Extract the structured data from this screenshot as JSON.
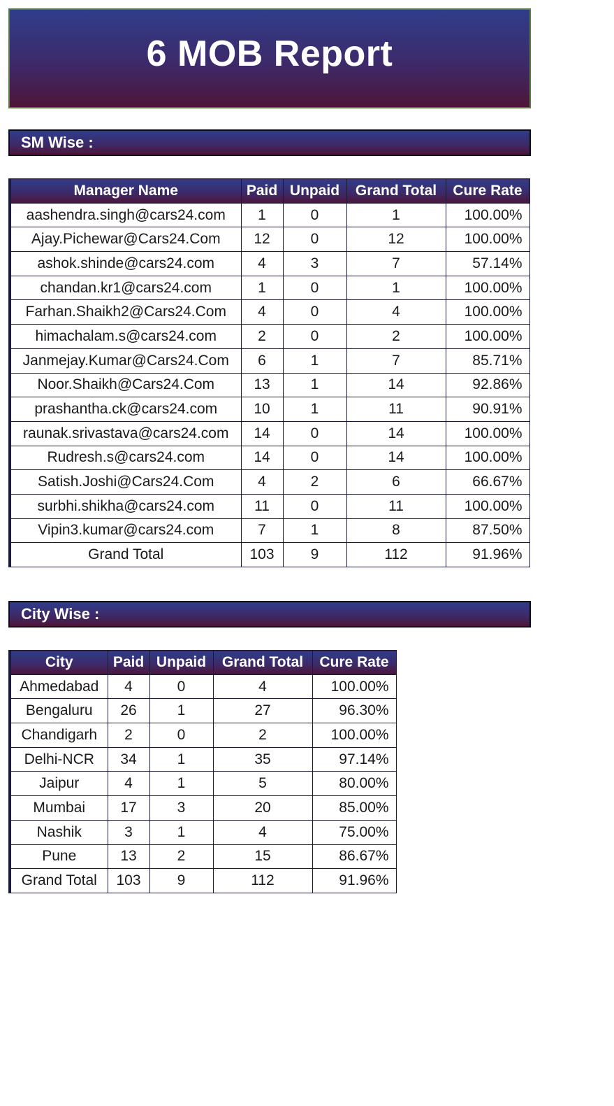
{
  "report": {
    "title": "6 MOB Report"
  },
  "sm_section": {
    "label": "SM Wise :",
    "columns": [
      "Manager Name",
      "Paid",
      "Unpaid",
      "Grand Total",
      "Cure Rate"
    ],
    "rows": [
      [
        "aashendra.singh@cars24.com",
        "1",
        "0",
        "1",
        "100.00%"
      ],
      [
        "Ajay.Pichewar@Cars24.Com",
        "12",
        "0",
        "12",
        "100.00%"
      ],
      [
        "ashok.shinde@cars24.com",
        "4",
        "3",
        "7",
        "57.14%"
      ],
      [
        "chandan.kr1@cars24.com",
        "1",
        "0",
        "1",
        "100.00%"
      ],
      [
        "Farhan.Shaikh2@Cars24.Com",
        "4",
        "0",
        "4",
        "100.00%"
      ],
      [
        "himachalam.s@cars24.com",
        "2",
        "0",
        "2",
        "100.00%"
      ],
      [
        "Janmejay.Kumar@Cars24.Com",
        "6",
        "1",
        "7",
        "85.71%"
      ],
      [
        "Noor.Shaikh@Cars24.Com",
        "13",
        "1",
        "14",
        "92.86%"
      ],
      [
        "prashantha.ck@cars24.com",
        "10",
        "1",
        "11",
        "90.91%"
      ],
      [
        "raunak.srivastava@cars24.com",
        "14",
        "0",
        "14",
        "100.00%"
      ],
      [
        "Rudresh.s@cars24.com",
        "14",
        "0",
        "14",
        "100.00%"
      ],
      [
        "Satish.Joshi@Cars24.Com",
        "4",
        "2",
        "6",
        "66.67%"
      ],
      [
        "surbhi.shikha@cars24.com",
        "11",
        "0",
        "11",
        "100.00%"
      ],
      [
        "Vipin3.kumar@cars24.com",
        "7",
        "1",
        "8",
        "87.50%"
      ],
      [
        "Grand Total",
        "103",
        "9",
        "112",
        "91.96%"
      ]
    ]
  },
  "city_section": {
    "label": "City Wise :",
    "columns": [
      "City",
      "Paid",
      "Unpaid",
      "Grand Total",
      "Cure Rate"
    ],
    "rows": [
      [
        "Ahmedabad",
        "4",
        "0",
        "4",
        "100.00%"
      ],
      [
        "Bengaluru",
        "26",
        "1",
        "27",
        "96.30%"
      ],
      [
        "Chandigarh",
        "2",
        "0",
        "2",
        "100.00%"
      ],
      [
        "Delhi-NCR",
        "34",
        "1",
        "35",
        "97.14%"
      ],
      [
        "Jaipur",
        "4",
        "1",
        "5",
        "80.00%"
      ],
      [
        "Mumbai",
        "17",
        "3",
        "20",
        "85.00%"
      ],
      [
        "Nashik",
        "3",
        "1",
        "4",
        "75.00%"
      ],
      [
        "Pune",
        "13",
        "2",
        "15",
        "86.67%"
      ],
      [
        "Grand Total",
        "103",
        "9",
        "112",
        "91.96%"
      ]
    ]
  },
  "colors": {
    "header_gradient_top": "#2f3d8a",
    "header_gradient_bottom": "#4e1538",
    "banner_border": "#5a7a45",
    "header_text": "#ffffff"
  }
}
